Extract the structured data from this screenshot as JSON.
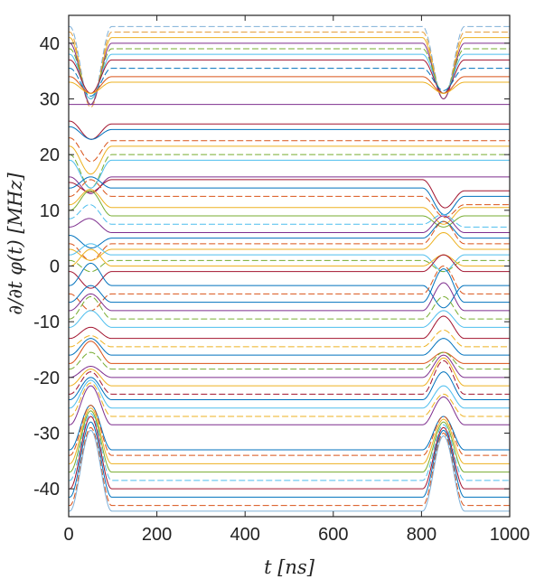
{
  "chart_data": {
    "type": "line",
    "title": "",
    "xlabel": "t [ns]",
    "ylabel": "∂/∂t φ(t) [MHz]",
    "xlim": [
      0,
      1000
    ],
    "ylim": [
      -45,
      45
    ],
    "xticks": [
      0,
      200,
      400,
      600,
      800,
      1000
    ],
    "yticks": [
      40,
      30,
      20,
      10,
      0,
      -10,
      -20,
      -30,
      -40
    ],
    "grid": false,
    "legend": "none",
    "pulses": [
      {
        "center": 50,
        "width": 95
      },
      {
        "center": 850,
        "width": 95
      }
    ],
    "series": [
      {
        "y_start": 43.0,
        "y_mid": 43.0,
        "y_end": 43.0,
        "dip1": -14,
        "dip2": -13,
        "color": "#7fb0d8",
        "dash": "dash"
      },
      {
        "y_start": 42.0,
        "y_mid": 42.0,
        "y_end": 42.0,
        "dip1": -13.5,
        "dip2": -12,
        "color": "#e69f3c",
        "dash": "dash"
      },
      {
        "y_start": 41.0,
        "y_mid": 41.0,
        "y_end": 41.0,
        "dip1": -12,
        "dip2": -11,
        "color": "#edb120",
        "dash": "solid"
      },
      {
        "y_start": 40.0,
        "y_mid": 40.0,
        "y_end": 40.0,
        "dip1": -11,
        "dip2": -10,
        "color": "#7e2f8e",
        "dash": "solid"
      },
      {
        "y_start": 39.0,
        "y_mid": 39.0,
        "y_end": 39.0,
        "dip1": -9,
        "dip2": -8,
        "color": "#77ac30",
        "dash": "dash"
      },
      {
        "y_start": 38.0,
        "y_mid": 38.0,
        "y_end": 38.0,
        "dip1": -8,
        "dip2": -7,
        "color": "#4dbeee",
        "dash": "solid"
      },
      {
        "y_start": 37.0,
        "y_mid": 37.0,
        "y_end": 37.0,
        "dip1": -6,
        "dip2": -6,
        "color": "#a2142f",
        "dash": "solid"
      },
      {
        "y_start": 35.5,
        "y_mid": 35.5,
        "y_end": 35.5,
        "dip1": -5,
        "dip2": -4,
        "color": "#0072bd",
        "dash": "dash"
      },
      {
        "y_start": 34.0,
        "y_mid": 34.0,
        "y_end": 34.0,
        "dip1": -3,
        "dip2": -3,
        "color": "#d95319",
        "dash": "solid"
      },
      {
        "y_start": 33.0,
        "y_mid": 33.0,
        "y_end": 33.0,
        "dip1": -2,
        "dip2": -2,
        "color": "#edb120",
        "dash": "solid"
      },
      {
        "y_start": 29.0,
        "y_mid": 29.0,
        "y_end": 29.0,
        "dip1": 0,
        "dip2": 0,
        "color": "#7e2f8e",
        "dash": "solid"
      },
      {
        "y_start": 26.0,
        "y_mid": 25.5,
        "y_end": 25.5,
        "dip1": -3,
        "dip2": 0,
        "color": "#a2142f",
        "dash": "solid"
      },
      {
        "y_start": 25.0,
        "y_mid": 24.5,
        "y_end": 24.5,
        "dip1": -2,
        "dip2": 0,
        "color": "#0072bd",
        "dash": "solid"
      },
      {
        "y_start": 23.0,
        "y_mid": 22.5,
        "y_end": 22.5,
        "dip1": -4,
        "dip2": 0,
        "color": "#d95319",
        "dash": "dash"
      },
      {
        "y_start": 21.5,
        "y_mid": 21.5,
        "y_end": 21.5,
        "dip1": -5,
        "dip2": 0,
        "color": "#edb120",
        "dash": "solid"
      },
      {
        "y_start": 20.0,
        "y_mid": 20.0,
        "y_end": 20.0,
        "dip1": -6,
        "dip2": 0,
        "color": "#77ac30",
        "dash": "dash"
      },
      {
        "y_start": 19.0,
        "y_mid": 19.0,
        "y_end": 19.0,
        "dip1": -5,
        "dip2": 0,
        "color": "#4dbeee",
        "dash": "solid"
      },
      {
        "y_start": 16.0,
        "y_mid": 16.0,
        "y_end": 16.0,
        "dip1": -3,
        "dip2": 0,
        "color": "#7e2f8e",
        "dash": "solid"
      },
      {
        "y_start": 15.0,
        "y_mid": 15.5,
        "y_end": 13.5,
        "dip1": -2,
        "dip2": -4,
        "color": "#a2142f",
        "dash": "solid"
      },
      {
        "y_start": 14.0,
        "y_mid": 14.0,
        "y_end": 12.5,
        "dip1": 2,
        "dip2": -4,
        "color": "#0072bd",
        "dash": "solid"
      },
      {
        "y_start": 12.5,
        "y_mid": 12.5,
        "y_end": 11.0,
        "dip1": 3,
        "dip2": -3,
        "color": "#d95319",
        "dash": "dash"
      },
      {
        "y_start": 11.0,
        "y_mid": 10.5,
        "y_end": 10.5,
        "dip1": 3,
        "dip2": -3,
        "color": "#edb120",
        "dash": "solid"
      },
      {
        "y_start": 10.0,
        "y_mid": 9.0,
        "y_end": 9.0,
        "dip1": 4,
        "dip2": -2,
        "color": "#77ac30",
        "dash": "solid"
      },
      {
        "y_start": 8.5,
        "y_mid": 7.5,
        "y_end": 7.0,
        "dip1": 3,
        "dip2": 2,
        "color": "#4dbeee",
        "dash": "dash"
      },
      {
        "y_start": 7.0,
        "y_mid": 6.0,
        "y_end": 6.0,
        "dip1": 2,
        "dip2": 3,
        "color": "#7e2f8e",
        "dash": "solid"
      },
      {
        "y_start": 5.5,
        "y_mid": 5.0,
        "y_end": 5.0,
        "dip1": -2,
        "dip2": 3,
        "color": "#0072bd",
        "dash": "solid"
      },
      {
        "y_start": 4.0,
        "y_mid": 4.0,
        "y_end": 4.0,
        "dip1": -3,
        "dip2": 4,
        "color": "#d95319",
        "dash": "dash"
      },
      {
        "y_start": 3.0,
        "y_mid": 3.0,
        "y_end": 3.0,
        "dip1": -2,
        "dip2": 3,
        "color": "#edb120",
        "dash": "solid"
      },
      {
        "y_start": 2.0,
        "y_mid": 2.0,
        "y_end": 2.0,
        "dip1": 2,
        "dip2": -3,
        "color": "#4dbeee",
        "dash": "solid"
      },
      {
        "y_start": 1.0,
        "y_mid": 1.0,
        "y_end": 1.0,
        "dip1": -2,
        "dip2": -2,
        "color": "#77ac30",
        "dash": "dash"
      },
      {
        "y_start": 0.0,
        "y_mid": 0.0,
        "y_end": 0.0,
        "dip1": 3,
        "dip2": 2,
        "color": "#edb120",
        "dash": "solid"
      },
      {
        "y_start": -1.0,
        "y_mid": -1.0,
        "y_end": -1.0,
        "dip1": -3,
        "dip2": 3,
        "color": "#a2142f",
        "dash": "solid"
      },
      {
        "y_start": -3.5,
        "y_mid": -3.5,
        "y_end": -3.5,
        "dip1": 4,
        "dip2": -4,
        "color": "#0072bd",
        "dash": "solid"
      },
      {
        "y_start": -5.0,
        "y_mid": -5.0,
        "y_end": -5.0,
        "dip1": -3,
        "dip2": 5,
        "color": "#d95319",
        "dash": "dash"
      },
      {
        "y_start": -6.5,
        "y_mid": -6.5,
        "y_end": -6.5,
        "dip1": 3,
        "dip2": 6,
        "color": "#0072bd",
        "dash": "solid"
      },
      {
        "y_start": -8.0,
        "y_mid": -8.0,
        "y_end": -8.0,
        "dip1": 3,
        "dip2": 5,
        "color": "#7e2f8e",
        "dash": "solid"
      },
      {
        "y_start": -9.5,
        "y_mid": -9.5,
        "y_end": -9.5,
        "dip1": 4,
        "dip2": 4,
        "color": "#77ac30",
        "dash": "dash"
      },
      {
        "y_start": -11.0,
        "y_mid": -11.0,
        "y_end": -11.0,
        "dip1": 3,
        "dip2": 3,
        "color": "#4dbeee",
        "dash": "solid"
      },
      {
        "y_start": -13.0,
        "y_mid": -13.0,
        "y_end": -13.0,
        "dip1": 2,
        "dip2": 4,
        "color": "#a2142f",
        "dash": "solid"
      },
      {
        "y_start": -14.5,
        "y_mid": -14.5,
        "y_end": -14.5,
        "dip1": 2,
        "dip2": 3,
        "color": "#edb120",
        "dash": "dash"
      },
      {
        "y_start": -16.0,
        "y_mid": -16.0,
        "y_end": -16.0,
        "dip1": 3,
        "dip2": 3,
        "color": "#0072bd",
        "dash": "solid"
      },
      {
        "y_start": -17.5,
        "y_mid": -17.5,
        "y_end": -17.5,
        "dip1": 4,
        "dip2": 2,
        "color": "#d95319",
        "dash": "solid"
      },
      {
        "y_start": -18.5,
        "y_mid": -18.5,
        "y_end": -18.5,
        "dip1": 3,
        "dip2": 3,
        "color": "#77ac30",
        "dash": "dash"
      },
      {
        "y_start": -20.0,
        "y_mid": -20.0,
        "y_end": -20.0,
        "dip1": 2,
        "dip2": 4,
        "color": "#7e2f8e",
        "dash": "solid"
      },
      {
        "y_start": -21.5,
        "y_mid": -21.5,
        "y_end": -21.5,
        "dip1": 3,
        "dip2": 5,
        "color": "#edb120",
        "dash": "solid"
      },
      {
        "y_start": -23.0,
        "y_mid": -23.0,
        "y_end": -23.0,
        "dip1": 4,
        "dip2": 6,
        "color": "#a2142f",
        "dash": "dash"
      },
      {
        "y_start": -24.0,
        "y_mid": -24.0,
        "y_end": -24.0,
        "dip1": 4,
        "dip2": 5,
        "color": "#0072bd",
        "dash": "solid"
      },
      {
        "y_start": -25.5,
        "y_mid": -25.5,
        "y_end": -25.5,
        "dip1": 5,
        "dip2": 4,
        "color": "#4dbeee",
        "dash": "solid"
      },
      {
        "y_start": -27.0,
        "y_mid": -27.0,
        "y_end": -27.0,
        "dip1": 6,
        "dip2": 4,
        "color": "#edb120",
        "dash": "dash"
      },
      {
        "y_start": -28.5,
        "y_mid": -28.5,
        "y_end": -28.5,
        "dip1": 7,
        "dip2": 5,
        "color": "#7e2f8e",
        "dash": "solid"
      },
      {
        "y_start": -33.0,
        "y_mid": -33.0,
        "y_end": -33.0,
        "dip1": 8,
        "dip2": 6,
        "color": "#0072bd",
        "dash": "solid"
      },
      {
        "y_start": -34.0,
        "y_mid": -34.0,
        "y_end": -34.0,
        "dip1": 9,
        "dip2": 7,
        "color": "#d95319",
        "dash": "dash"
      },
      {
        "y_start": -35.5,
        "y_mid": -35.5,
        "y_end": -35.5,
        "dip1": 10,
        "dip2": 8,
        "color": "#edb120",
        "dash": "solid"
      },
      {
        "y_start": -37.0,
        "y_mid": -37.0,
        "y_end": -37.0,
        "dip1": 11,
        "dip2": 9,
        "color": "#77ac30",
        "dash": "solid"
      },
      {
        "y_start": -38.5,
        "y_mid": -38.5,
        "y_end": -38.5,
        "dip1": 12,
        "dip2": 10,
        "color": "#4dbeee",
        "dash": "dash"
      },
      {
        "y_start": -40.0,
        "y_mid": -40.0,
        "y_end": -40.0,
        "dip1": 13,
        "dip2": 11,
        "color": "#a2142f",
        "dash": "solid"
      },
      {
        "y_start": -41.5,
        "y_mid": -41.5,
        "y_end": -41.5,
        "dip1": 13.5,
        "dip2": 12,
        "color": "#0072bd",
        "dash": "solid"
      },
      {
        "y_start": -43.0,
        "y_mid": -43.0,
        "y_end": -43.0,
        "dip1": 14,
        "dip2": 13,
        "color": "#d95319",
        "dash": "dash"
      },
      {
        "y_start": -44.0,
        "y_mid": -44.0,
        "y_end": -44.0,
        "dip1": 14.5,
        "dip2": 13.5,
        "color": "#7fb0d8",
        "dash": "solid"
      }
    ]
  }
}
